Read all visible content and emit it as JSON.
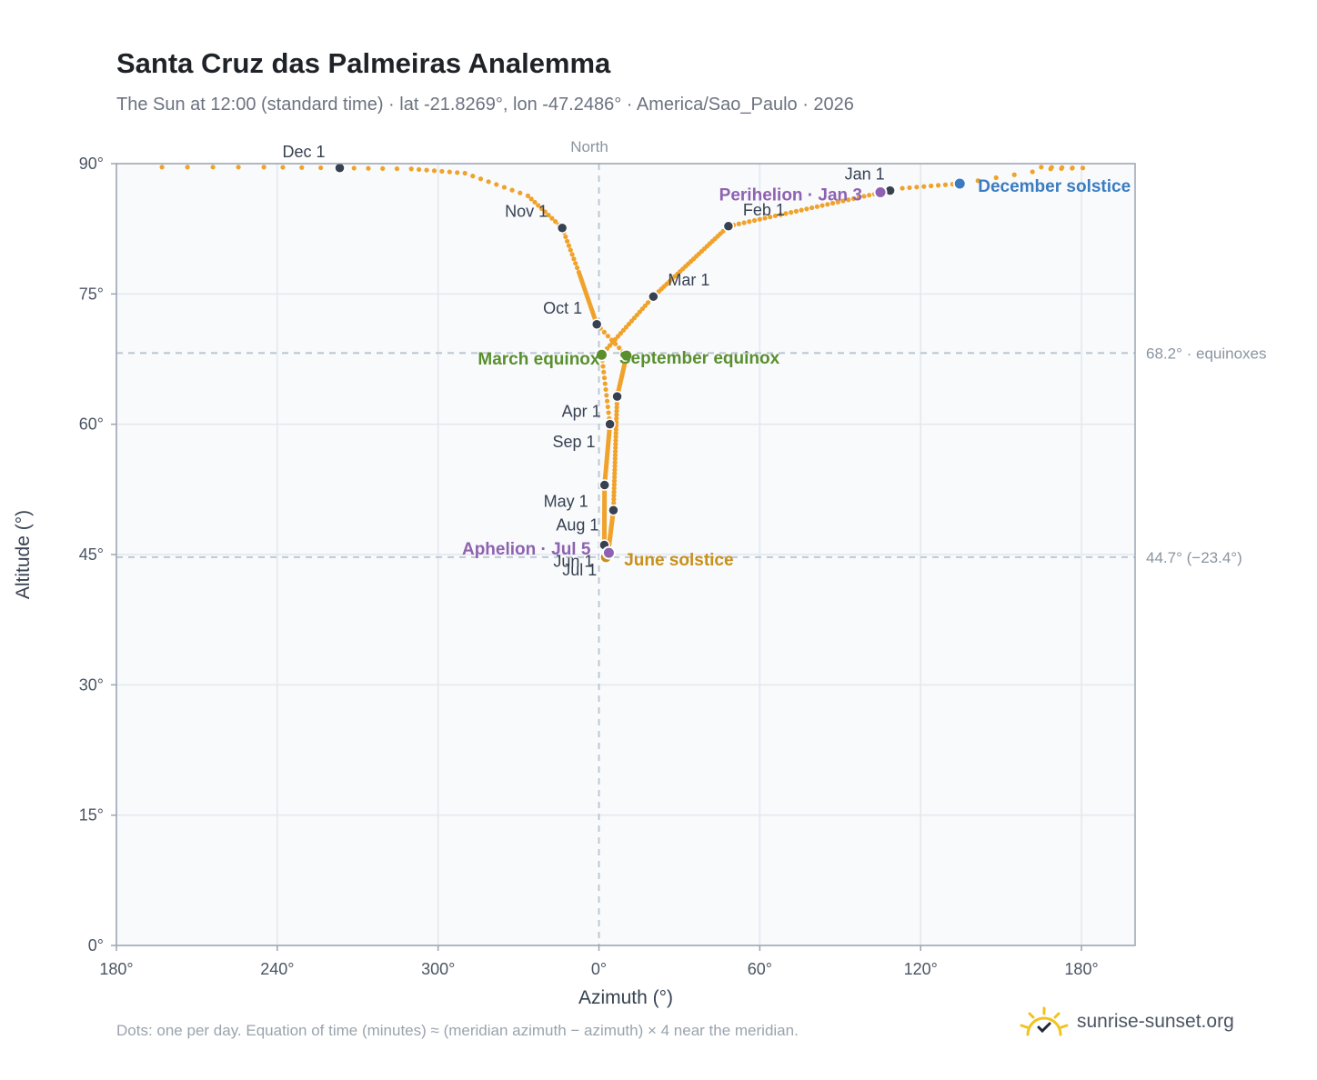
{
  "title": "Santa Cruz das Palmeiras Analemma",
  "subtitle": "The Sun at 12:00 (standard time) · lat -21.8269°, lon -47.2486° · America/Sao_Paulo · 2026",
  "footnote": "Dots: one per day. Equation of time (minutes) ≈ (meridian azimuth − azimuth) × 4 near the meridian.",
  "brand": {
    "name": "sunrise-sunset.org",
    "icon": "sun-logo-icon"
  },
  "colors": {
    "path": "#f0a22a",
    "month_marker": "#374151",
    "equinox": "#5a8f2e",
    "june_solstice": "#c8901a",
    "december_solstice": "#3b7bbf",
    "perihelion_aphelion": "#8e62b0",
    "grid": "#e3e8ee",
    "reference_line": "#b8c4ce",
    "plot_background": "#f8fafc"
  },
  "chart_data": {
    "type": "scatter",
    "xlabel": "Azimuth (°)",
    "ylabel": "Altitude (°)",
    "xlim": [
      180,
      560
    ],
    "ylim": [
      0,
      90
    ],
    "x_ticks": [
      {
        "value": 180,
        "label": "180°"
      },
      {
        "value": 240,
        "label": "240°"
      },
      {
        "value": 300,
        "label": "300°"
      },
      {
        "value": 360,
        "label": "0°"
      },
      {
        "value": 420,
        "label": "60°"
      },
      {
        "value": 480,
        "label": "120°"
      },
      {
        "value": 540,
        "label": "180°"
      }
    ],
    "y_ticks": [
      {
        "value": 0,
        "label": "0°"
      },
      {
        "value": 15,
        "label": "15°"
      },
      {
        "value": 30,
        "label": "30°"
      },
      {
        "value": 45,
        "label": "45°"
      },
      {
        "value": 60,
        "label": "60°"
      },
      {
        "value": 75,
        "label": "75°"
      },
      {
        "value": 90,
        "label": "90°"
      }
    ],
    "grid": true,
    "meridian": {
      "x": 360,
      "label": "North"
    },
    "reference_lines": [
      {
        "y": 68.2,
        "label": "68.2° · equinoxes"
      },
      {
        "y": 44.7,
        "label": "44.7° (−23.4°)"
      }
    ],
    "months": [
      {
        "label": "Jan 1",
        "az": 468.6,
        "alt": 86.9,
        "anchor": "end",
        "dx": -6,
        "dy": -12
      },
      {
        "label": "Feb 1",
        "az": 408.3,
        "alt": 82.8,
        "anchor": "start",
        "dx": 16,
        "dy": -12
      },
      {
        "label": "Mar 1",
        "az": 380.3,
        "alt": 74.7,
        "anchor": "start",
        "dx": 16,
        "dy": -12
      },
      {
        "label": "Apr 1",
        "az": 364.1,
        "alt": 60.0,
        "anchor": "end",
        "dx": -10,
        "dy": -8
      },
      {
        "label": "May 1",
        "az": 362.1,
        "alt": 53.0,
        "anchor": "end",
        "dx": -18,
        "dy": 24
      },
      {
        "label": "Jun 1",
        "az": 362.0,
        "alt": 46.1,
        "anchor": "end",
        "dx": -12,
        "dy": 24
      },
      {
        "label": "Jul 1",
        "az": 363.3,
        "alt": 44.9,
        "anchor": "end",
        "dx": -12,
        "dy": 22
      },
      {
        "label": "Aug 1",
        "az": 365.4,
        "alt": 50.1,
        "anchor": "end",
        "dx": -16,
        "dy": 22
      },
      {
        "label": "Sep 1",
        "az": 366.8,
        "alt": 63.2,
        "anchor": "end",
        "dx": -24,
        "dy": 56
      },
      {
        "label": "Oct 1",
        "az": 359.2,
        "alt": 71.5,
        "anchor": "end",
        "dx": -16,
        "dy": -12
      },
      {
        "label": "Nov 1",
        "az": 346.3,
        "alt": 82.6,
        "anchor": "end",
        "dx": -16,
        "dy": -12
      },
      {
        "label": "Dec 1",
        "az": 263.3,
        "alt": 89.5,
        "anchor": "end",
        "dx": -16,
        "dy": -12
      }
    ],
    "events": [
      {
        "label": "March equinox",
        "az": 361.0,
        "alt": 68.0,
        "color": "#5a8f2e",
        "anchor": "end",
        "dx": -2,
        "dy": 11
      },
      {
        "label": "September equinox",
        "az": 370.3,
        "alt": 67.9,
        "color": "#5a8f2e",
        "anchor": "start",
        "dx": -8,
        "dy": 9
      },
      {
        "label": "June solstice",
        "az": 362.6,
        "alt": 44.7,
        "color": "#c8901a",
        "anchor": "start",
        "dx": 20,
        "dy": 9
      },
      {
        "label": "December solstice",
        "az": 494.6,
        "alt": 87.7,
        "color": "#3b7bbf",
        "anchor": "start",
        "dx": 20,
        "dy": 9
      },
      {
        "label": "Perihelion · Jan 3",
        "az": 465.0,
        "alt": 86.7,
        "color": "#8e62b0",
        "anchor": "end",
        "dx": -20,
        "dy": 9
      },
      {
        "label": "Aphelion · Jul 5",
        "az": 363.7,
        "alt": 45.2,
        "color": "#8e62b0",
        "anchor": "end",
        "dx": -20,
        "dy": 2
      }
    ],
    "daily_path_keypoints": [
      {
        "day": 1,
        "az": 468.6,
        "alt": 86.9
      },
      {
        "day": 32,
        "az": 408.3,
        "alt": 82.8
      },
      {
        "day": 60,
        "az": 380.3,
        "alt": 74.7
      },
      {
        "day": 79,
        "az": 361.0,
        "alt": 68.0
      },
      {
        "day": 91,
        "az": 364.1,
        "alt": 60.0
      },
      {
        "day": 121,
        "az": 362.1,
        "alt": 53.0
      },
      {
        "day": 152,
        "az": 362.0,
        "alt": 46.1
      },
      {
        "day": 172,
        "az": 362.6,
        "alt": 44.7
      },
      {
        "day": 182,
        "az": 363.3,
        "alt": 44.9
      },
      {
        "day": 213,
        "az": 365.4,
        "alt": 50.1
      },
      {
        "day": 244,
        "az": 366.8,
        "alt": 63.2
      },
      {
        "day": 266,
        "az": 370.3,
        "alt": 67.9
      },
      {
        "day": 274,
        "az": 359.2,
        "alt": 71.5
      },
      {
        "day": 295,
        "az": 352.5,
        "alt": 77.5
      },
      {
        "day": 305,
        "az": 346.3,
        "alt": 82.6
      },
      {
        "day": 315,
        "az": 333.5,
        "alt": 86.3
      },
      {
        "day": 323,
        "az": 310.0,
        "alt": 88.9
      },
      {
        "day": 330,
        "az": 290.0,
        "alt": 89.4
      },
      {
        "day": 335,
        "az": 263.3,
        "alt": 89.5
      },
      {
        "day": 339,
        "az": 235.0,
        "alt": 89.6
      },
      {
        "day": 343,
        "az": 197.0,
        "alt": 89.6
      },
      {
        "day": 344,
        "az": 525.0,
        "alt": 89.6
      },
      {
        "day": 348,
        "az": 540.5,
        "alt": 89.5
      },
      {
        "day": 351,
        "az": 528.5,
        "alt": 89.4
      },
      {
        "day": 356,
        "az": 494.6,
        "alt": 87.7
      },
      {
        "day": 365,
        "az": 470.5,
        "alt": 87.1
      }
    ]
  }
}
